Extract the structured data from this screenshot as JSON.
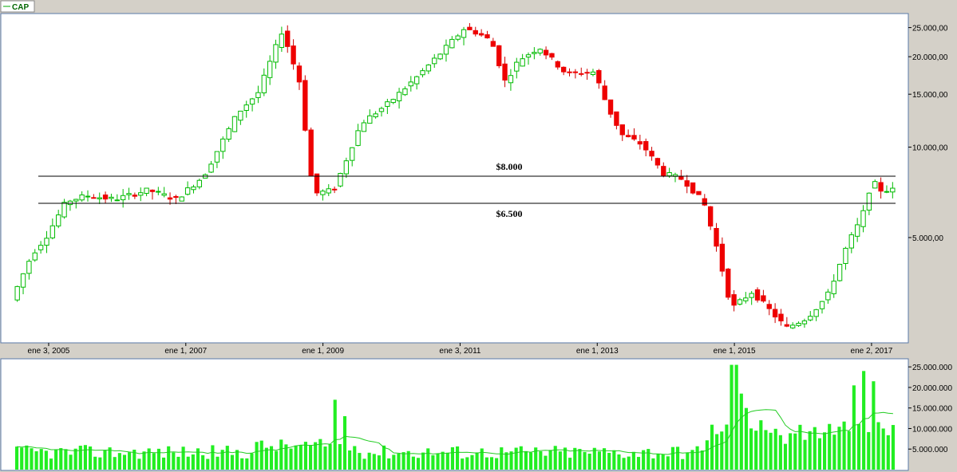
{
  "chart_data": [
    {
      "type": "candlestick",
      "legend": [
        "CAP"
      ],
      "scale": "log",
      "ylim": [
        2300,
        27000
      ],
      "x_ticks": [
        "ene 3, 2005",
        "ene 1, 2007",
        "ene 1, 2009",
        "ene 3, 2011",
        "ene 1, 2013",
        "ene 1, 2015",
        "ene 2, 2017"
      ],
      "y_ticks": [
        "25.000,00",
        "20.000,00",
        "15.000,00",
        "10.000,00",
        "5.000,00"
      ],
      "y_tick_values": [
        25000,
        20000,
        15000,
        10000,
        5000
      ],
      "levels": [
        {
          "label": "$8.000",
          "value": 8000
        },
        {
          "label": "$6.500",
          "value": 6500
        }
      ],
      "grid": false,
      "colors": {
        "up": "#00bb00",
        "down": "#ee0000"
      },
      "x_start": 2004.5,
      "x_end": 2017.35,
      "trend": [
        [
          2004.5,
          3100
        ],
        [
          2004.8,
          4400
        ],
        [
          2005.0,
          5000
        ],
        [
          2005.3,
          6600
        ],
        [
          2005.6,
          6900
        ],
        [
          2006.0,
          6700
        ],
        [
          2006.5,
          7200
        ],
        [
          2006.9,
          6700
        ],
        [
          2007.3,
          8000
        ],
        [
          2007.8,
          13000
        ],
        [
          2008.1,
          15200
        ],
        [
          2008.45,
          24500
        ],
        [
          2008.7,
          16500
        ],
        [
          2008.9,
          7000
        ],
        [
          2009.2,
          7200
        ],
        [
          2009.6,
          12000
        ],
        [
          2010.0,
          14000
        ],
        [
          2010.4,
          17000
        ],
        [
          2010.8,
          21000
        ],
        [
          2011.1,
          24800
        ],
        [
          2011.3,
          24000
        ],
        [
          2011.5,
          22500
        ],
        [
          2011.7,
          16500
        ],
        [
          2011.9,
          19500
        ],
        [
          2012.2,
          21500
        ],
        [
          2012.6,
          17500
        ],
        [
          2013.0,
          17800
        ],
        [
          2013.2,
          13500
        ],
        [
          2013.4,
          11000
        ],
        [
          2013.7,
          10200
        ],
        [
          2014.0,
          8200
        ],
        [
          2014.3,
          7800
        ],
        [
          2014.6,
          6500
        ],
        [
          2014.8,
          4500
        ],
        [
          2015.0,
          2900
        ],
        [
          2015.3,
          3300
        ],
        [
          2015.6,
          2800
        ],
        [
          2015.8,
          2500
        ],
        [
          2016.1,
          2700
        ],
        [
          2016.4,
          3200
        ],
        [
          2016.7,
          4800
        ],
        [
          2016.9,
          5800
        ],
        [
          2017.05,
          7800
        ],
        [
          2017.15,
          7200
        ]
      ]
    },
    {
      "type": "bar",
      "series": [
        "volume",
        "moving-average"
      ],
      "ylim": [
        0,
        26000000
      ],
      "y_ticks": [
        "25.000.000",
        "20.000.000",
        "15.000.000",
        "10.000.000",
        "5.000.000"
      ],
      "y_tick_values": [
        25000000,
        20000000,
        15000000,
        10000000,
        5000000
      ],
      "colors": {
        "bar": "#22ee22",
        "line": "#22cc22"
      },
      "volume_peaks": [
        {
          "x": 2009.15,
          "value": 17000000
        },
        {
          "x": 2009.3,
          "value": 13000000
        },
        {
          "x": 2015.0,
          "value": 25500000
        },
        {
          "x": 2015.1,
          "value": 18500000
        },
        {
          "x": 2015.2,
          "value": 15000000
        },
        {
          "x": 2016.75,
          "value": 20500000
        },
        {
          "x": 2016.9,
          "value": 24000000
        },
        {
          "x": 2017.05,
          "value": 21500000
        },
        {
          "x": 2017.15,
          "value": 10000000
        }
      ]
    }
  ]
}
